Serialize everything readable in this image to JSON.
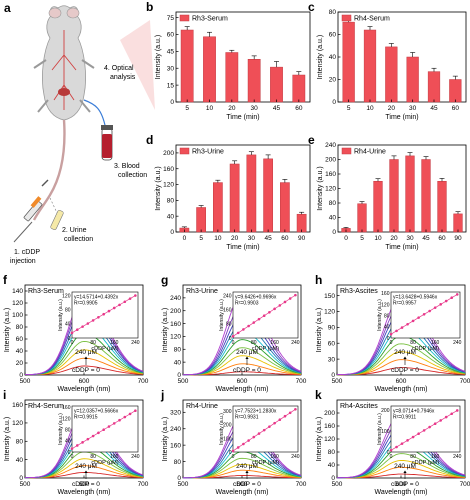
{
  "colors": {
    "bar": "#ef4f57",
    "bar_edge": "#c23a42",
    "dot": "#e8388a",
    "spectra": [
      "#d62728",
      "#ff7f0e",
      "#e8c200",
      "#7ac142",
      "#2ca02c",
      "#17becf",
      "#1f77b4",
      "#3f3fbf",
      "#7f3fbf",
      "#b040d0"
    ]
  },
  "schematic": {
    "letter": "a",
    "labels": {
      "step1a": "1. cDDP",
      "step1b": "injection",
      "step2a": "2. Urine",
      "step2b": "collection",
      "step3a": "3. Blood",
      "step3b": "collection",
      "step4a": "4. Optical",
      "step4b": "analysis"
    }
  },
  "chart_data": [
    {
      "id": "b",
      "letter": "b",
      "type": "bar",
      "legend": "Rh3-Serum",
      "legend_position": "top-left",
      "categories": [
        "5",
        "10",
        "20",
        "30",
        "45",
        "60"
      ],
      "values": [
        64,
        58,
        44,
        38,
        31,
        24
      ],
      "errors": [
        3,
        4,
        2,
        3,
        5,
        3
      ],
      "xlabel": "Time (min)",
      "ylabel": "Intensity (a.u.)",
      "ylim": [
        0,
        80
      ],
      "yticks": [
        "0",
        "15",
        "30",
        "45",
        "60",
        "75"
      ],
      "ytick_values": [
        0,
        15,
        30,
        45,
        60,
        75
      ]
    },
    {
      "id": "c",
      "letter": "c",
      "type": "bar",
      "legend": "Rh4-Serum",
      "legend_position": "top-left",
      "categories": [
        "5",
        "10",
        "20",
        "30",
        "45",
        "60"
      ],
      "values": [
        71,
        64,
        49,
        40,
        27,
        20
      ],
      "errors": [
        2,
        3,
        3,
        4,
        3,
        3
      ],
      "xlabel": "Time (min)",
      "ylabel": "Intensity (a.u.)",
      "ylim": [
        0,
        80
      ],
      "yticks": [
        "0",
        "20",
        "40",
        "60",
        "80"
      ],
      "ytick_values": [
        0,
        20,
        40,
        60,
        80
      ]
    },
    {
      "id": "d",
      "letter": "d",
      "type": "bar",
      "legend": "Rh3-Urine",
      "legend_position": "top-left",
      "categories": [
        "0",
        "5",
        "10",
        "20",
        "30",
        "45",
        "60",
        "90"
      ],
      "values": [
        10,
        62,
        125,
        172,
        195,
        185,
        125,
        45
      ],
      "errors": [
        3,
        5,
        6,
        8,
        8,
        10,
        8,
        5
      ],
      "xlabel": "Time (min)",
      "ylabel": "Intensity (a.u.)",
      "ylim": [
        0,
        220
      ],
      "yticks": [
        "0",
        "40",
        "80",
        "120",
        "160",
        "200"
      ],
      "ytick_values": [
        0,
        40,
        80,
        120,
        160,
        200
      ]
    },
    {
      "id": "e",
      "letter": "e",
      "type": "bar",
      "legend": "Rh4-Urine",
      "legend_position": "top-left",
      "categories": [
        "0",
        "5",
        "10",
        "20",
        "30",
        "45",
        "60",
        "90"
      ],
      "values": [
        10,
        78,
        140,
        200,
        210,
        200,
        140,
        50
      ],
      "errors": [
        3,
        6,
        7,
        10,
        9,
        8,
        8,
        6
      ],
      "xlabel": "Time (min)",
      "ylabel": "Intensity (a.u.)",
      "ylim": [
        0,
        240
      ],
      "yticks": [
        "0",
        "40",
        "80",
        "120",
        "160",
        "200",
        "240"
      ],
      "ytick_values": [
        0,
        40,
        80,
        120,
        160,
        200,
        240
      ]
    },
    {
      "id": "f",
      "letter": "f",
      "type": "line",
      "legend": "Rh3-Serum",
      "peak_x": 600,
      "xlim": [
        500,
        700
      ],
      "xticks": [
        "500",
        "600",
        "700"
      ],
      "xtick_values": [
        500,
        600,
        700
      ],
      "xlabel": "Wavelength (nm)",
      "ylabel": "Intensity (a.u.)",
      "ylim": [
        0,
        150
      ],
      "yticks": [
        "0",
        "20",
        "40",
        "60",
        "80",
        "100",
        "120",
        "140"
      ],
      "ytick_values": [
        0,
        20,
        40,
        60,
        80,
        100,
        120,
        140
      ],
      "peaks": [
        15,
        28,
        42,
        56,
        70,
        84,
        97,
        110,
        120,
        130
      ],
      "annot_top": "240 μM",
      "annot_bottom": "cDDP = 0",
      "inset": {
        "equation": "y=14.5714+0.4392x",
        "r2": "R²=0.9905",
        "slope": 0.4392,
        "intercept": 14.5714,
        "x": [
          0,
          20,
          40,
          60,
          80,
          100,
          120,
          140,
          160,
          180,
          200,
          220,
          240
        ],
        "xlim": [
          0,
          250
        ],
        "ylim": [
          0,
          130
        ],
        "xticks": [
          "0",
          "80",
          "160",
          "240"
        ],
        "xtick_values": [
          0,
          80,
          160,
          240
        ],
        "yticks": [
          "0",
          "40",
          "80",
          "120"
        ],
        "ytick_values": [
          0,
          40,
          80,
          120
        ],
        "xlabel": "cDDP (μM)",
        "ylabel": "Intensity (a.u.)"
      }
    },
    {
      "id": "g",
      "letter": "g",
      "type": "line",
      "legend": "Rh3-Urine",
      "peak_x": 600,
      "xlim": [
        500,
        700
      ],
      "xticks": [
        "500",
        "600",
        "700"
      ],
      "xtick_values": [
        500,
        600,
        700
      ],
      "xlabel": "Wavelength (nm)",
      "ylabel": "Intensity (a.u.)",
      "ylim": [
        0,
        280
      ],
      "yticks": [
        "0",
        "40",
        "80",
        "120",
        "160",
        "200",
        "240"
      ],
      "ytick_values": [
        0,
        40,
        80,
        120,
        160,
        200,
        240
      ],
      "peaks": [
        10,
        35,
        60,
        85,
        110,
        135,
        160,
        185,
        215,
        250
      ],
      "annot_top": "240 μM",
      "annot_bottom": "cDDP = 0",
      "inset": {
        "equation": "y=9.6426+0.9696x",
        "r2": "R²=0.9903",
        "slope": 0.9696,
        "intercept": 9.6426,
        "x": [
          0,
          20,
          40,
          60,
          80,
          100,
          120,
          140,
          160,
          180,
          200,
          220,
          240
        ],
        "xlim": [
          0,
          250
        ],
        "ylim": [
          0,
          260
        ],
        "xticks": [
          "0",
          "80",
          "160",
          "240"
        ],
        "xtick_values": [
          0,
          80,
          160,
          240
        ],
        "yticks": [
          "0",
          "80",
          "160",
          "240"
        ],
        "ytick_values": [
          0,
          80,
          160,
          240
        ],
        "xlabel": "cDDP (μM)",
        "ylabel": "Intensity (a.u.)"
      }
    },
    {
      "id": "h",
      "letter": "h",
      "type": "line",
      "legend": "Rh3-Ascites",
      "peak_x": 600,
      "xlim": [
        500,
        700
      ],
      "xticks": [
        "500",
        "600",
        "700"
      ],
      "xtick_values": [
        500,
        600,
        700
      ],
      "xlabel": "Wavelength (nm)",
      "ylabel": "Intensity (a.u.)",
      "ylim": [
        0,
        170
      ],
      "yticks": [
        "0",
        "30",
        "60",
        "90",
        "120",
        "150"
      ],
      "ytick_values": [
        0,
        30,
        60,
        90,
        120,
        150
      ],
      "peaks": [
        14,
        29,
        44,
        59,
        74,
        89,
        104,
        119,
        133,
        148
      ],
      "annot_top": "240 μM",
      "annot_bottom": "cDDP = 0",
      "inset": {
        "equation": "y=13.6428+0.5946x",
        "r2": "R²=0.9957",
        "slope": 0.5946,
        "intercept": 13.6428,
        "x": [
          0,
          20,
          40,
          60,
          80,
          100,
          120,
          140,
          160,
          180,
          200,
          220,
          240
        ],
        "xlim": [
          0,
          250
        ],
        "ylim": [
          0,
          165
        ],
        "xticks": [
          "0",
          "80",
          "160",
          "240"
        ],
        "xtick_values": [
          0,
          80,
          160,
          240
        ],
        "yticks": [
          "0",
          "40",
          "80",
          "120",
          "160"
        ],
        "ytick_values": [
          0,
          40,
          80,
          120,
          160
        ],
        "xlabel": "cDDP (μM)",
        "ylabel": "Intensity (a.u.)"
      }
    },
    {
      "id": "i",
      "letter": "i",
      "type": "line",
      "legend": "Rh4-Serum",
      "peak_x": 600,
      "xlim": [
        500,
        700
      ],
      "xticks": [
        "500",
        "600",
        "700"
      ],
      "xtick_values": [
        500,
        600,
        700
      ],
      "xlabel": "Wavelength (nm)",
      "ylabel": "Intensity (a.u.)",
      "ylim": [
        0,
        170
      ],
      "yticks": [
        "0",
        "40",
        "80",
        "120",
        "160"
      ],
      "ytick_values": [
        0,
        40,
        80,
        120,
        160
      ],
      "peaks": [
        12,
        27,
        42,
        57,
        72,
        87,
        102,
        117,
        132,
        146
      ],
      "annot_top": "240 μM",
      "annot_bottom": "cDDP = 0",
      "inset": {
        "equation": "y=12.0357+0.5666x",
        "r2": "R²=0.9915",
        "slope": 0.5666,
        "intercept": 12.0357,
        "x": [
          0,
          20,
          40,
          60,
          80,
          100,
          120,
          140,
          160,
          180,
          200,
          220,
          240
        ],
        "xlim": [
          0,
          250
        ],
        "ylim": [
          0,
          165
        ],
        "xticks": [
          "0",
          "80",
          "160",
          "240"
        ],
        "xtick_values": [
          0,
          80,
          160,
          240
        ],
        "yticks": [
          "0",
          "40",
          "80",
          "120",
          "160"
        ],
        "ytick_values": [
          0,
          40,
          80,
          120,
          160
        ],
        "xlabel": "cDDP (μM)",
        "ylabel": "Intensity (a.u.)"
      }
    },
    {
      "id": "j",
      "letter": "j",
      "type": "line",
      "legend": "Rh4-Urine",
      "peak_x": 600,
      "xlim": [
        500,
        700
      ],
      "xticks": [
        "500",
        "600",
        "700"
      ],
      "xtick_values": [
        500,
        600,
        700
      ],
      "xlabel": "Wavelength (nm)",
      "ylabel": "Intensity (a.u.)",
      "ylim": [
        0,
        380
      ],
      "yticks": [
        "0",
        "80",
        "160",
        "240",
        "320"
      ],
      "ytick_values": [
        0,
        80,
        160,
        240,
        320
      ],
      "peaks": [
        12,
        38,
        66,
        96,
        128,
        160,
        195,
        232,
        268,
        300
      ],
      "annot_top": "240 μM",
      "annot_bottom": "cDDP = 0",
      "inset": {
        "equation": "y=7.7523+1.2830x",
        "r2": "R²=0.9931",
        "slope": 1.283,
        "intercept": 7.7523,
        "x": [
          0,
          20,
          40,
          60,
          80,
          100,
          120,
          140,
          160,
          180,
          200,
          220,
          240
        ],
        "xlim": [
          0,
          250
        ],
        "ylim": [
          0,
          340
        ],
        "xticks": [
          "0",
          "80",
          "160",
          "240"
        ],
        "xtick_values": [
          0,
          80,
          160,
          240
        ],
        "yticks": [
          "0",
          "100",
          "200",
          "300"
        ],
        "ytick_values": [
          0,
          100,
          200,
          300
        ],
        "xlabel": "cDDP (μM)",
        "ylabel": "Intensity (a.u.)"
      }
    },
    {
      "id": "k",
      "letter": "k",
      "type": "line",
      "legend": "Rh4-Ascites",
      "peak_x": 600,
      "xlim": [
        500,
        700
      ],
      "xticks": [
        "500",
        "600",
        "700"
      ],
      "xtick_values": [
        500,
        600,
        700
      ],
      "xlabel": "Wavelength (nm)",
      "ylabel": "Intensity (a.u.)",
      "ylim": [
        0,
        240
      ],
      "yticks": [
        "0",
        "40",
        "80",
        "120",
        "160",
        "200"
      ],
      "ytick_values": [
        0,
        40,
        80,
        120,
        160,
        200
      ],
      "peaks": [
        12,
        33,
        54,
        75,
        96,
        117,
        138,
        158,
        178,
        200
      ],
      "annot_top": "240 μM",
      "annot_bottom": "cDDP = 0",
      "inset": {
        "equation": "y=8.0714+0.7946x",
        "r2": "R²=0.9911",
        "slope": 0.7946,
        "intercept": 8.0714,
        "x": [
          0,
          20,
          40,
          60,
          80,
          100,
          120,
          140,
          160,
          180,
          200,
          220,
          240
        ],
        "xlim": [
          0,
          250
        ],
        "ylim": [
          0,
          220
        ],
        "xticks": [
          "0",
          "80",
          "160",
          "240"
        ],
        "xtick_values": [
          0,
          80,
          160,
          240
        ],
        "yticks": [
          "0",
          "100",
          "200"
        ],
        "ytick_values": [
          0,
          100,
          200
        ],
        "xlabel": "cDDP (μM)",
        "ylabel": "Intensity (a.u.)"
      }
    }
  ]
}
